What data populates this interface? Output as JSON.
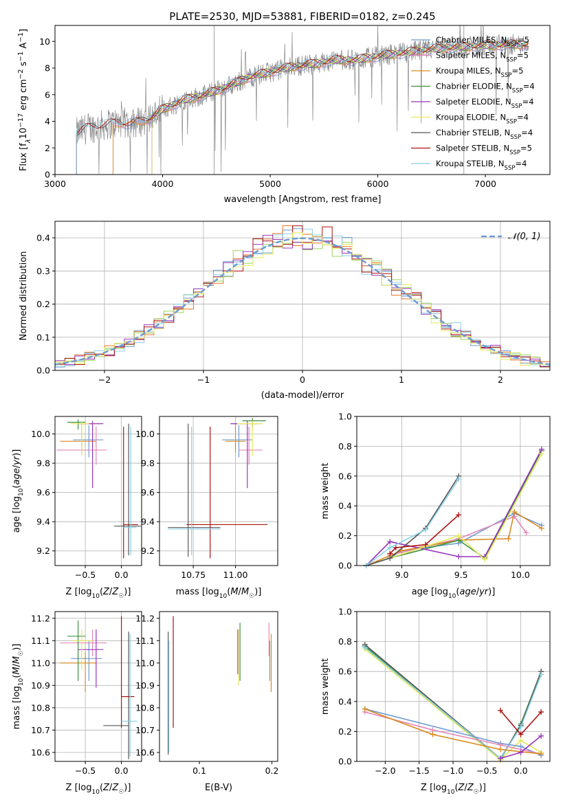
{
  "figure": {
    "title": "PLATE=2530, MJD=53881, FIBERID=0182, z=0.245"
  },
  "colors": {
    "Chabrier MILES": "#6f9bd1",
    "Salpeter MILES": "#e486b8",
    "Kroupa MILES": "#d98a1e",
    "Chabrier ELODIE": "#3f8f3f",
    "Salpeter ELODIE": "#9933bb",
    "Kroupa ELODIE": "#e4e85a",
    "Chabrier STELIB": "#555555",
    "Salpeter STELIB": "#aa1111",
    "Kroupa STELIB": "#88d0e6",
    "orange": "#e6742a",
    "green": "#98d45a",
    "data": "#888888",
    "gaussian": "#6f9bd1"
  },
  "chart_data": [
    {
      "id": "spectrum",
      "type": "line",
      "title": "PLATE=2530, MJD=53881, FIBERID=0182, z=0.245",
      "xlabel": "wavelength [Angstrom, rest frame]",
      "ylabel": "Flux [f_λ 10^-17 erg cm^-2 s^-1 A^-1]",
      "xlim": [
        3000,
        7600
      ],
      "ylim": [
        0,
        11.2
      ],
      "xticks": [
        3000,
        4000,
        5000,
        6000,
        7000
      ],
      "yticks": [
        0,
        2,
        4,
        6,
        8,
        10
      ],
      "grid": false,
      "legend_position": "top-right",
      "legend": [
        {
          "label": "Chabrier MILES, N_SSP=5",
          "lib": "Chabrier MILES"
        },
        {
          "label": "Salpeter MILES, N_SSP=5",
          "lib": "Salpeter MILES"
        },
        {
          "label": "Kroupa MILES, N_SSP=5",
          "lib": "Kroupa MILES"
        },
        {
          "label": "Chabrier ELODIE, N_SSP=4",
          "lib": "Chabrier ELODIE"
        },
        {
          "label": "Salpeter ELODIE, N_SSP=4",
          "lib": "Salpeter ELODIE"
        },
        {
          "label": "Kroupa ELODIE, N_SSP=4",
          "lib": "Kroupa ELODIE"
        },
        {
          "label": "Chabrier STELIB, N_SSP=4",
          "lib": "Chabrier STELIB"
        },
        {
          "label": "Salpeter STELIB, N_SSP=5",
          "lib": "Salpeter STELIB"
        },
        {
          "label": "Kroupa STELIB, N_SSP=4",
          "lib": "Kroupa STELIB"
        }
      ],
      "model_continuum": {
        "x": [
          3200,
          3300,
          3400,
          3500,
          3600,
          3700,
          3800,
          3900,
          4000,
          4200,
          4400,
          4600,
          4800,
          5000,
          5200,
          5400,
          5600,
          5800,
          6000,
          6300,
          6600,
          7000,
          7400
        ],
        "y": [
          3.1,
          3.5,
          3.6,
          3.8,
          3.9,
          3.8,
          4.0,
          4.3,
          4.9,
          5.6,
          6.0,
          6.6,
          7.3,
          7.7,
          8.1,
          8.3,
          8.6,
          8.6,
          8.9,
          9.2,
          9.5,
          9.7,
          9.8
        ]
      },
      "model_start_wavelength": {
        "Chabrier MILES": 3540,
        "Salpeter MILES": 3540,
        "Kroupa MILES": 3540,
        "Chabrier ELODIE": 3900,
        "Salpeter ELODIE": 3900,
        "Kroupa ELODIE": 3900,
        "Chabrier STELIB": 3200,
        "Salpeter STELIB": 3200,
        "Kroupa STELIB": 3200
      },
      "data_wavelength_range": [
        3200,
        7400
      ]
    },
    {
      "id": "residuals",
      "type": "histogram",
      "xlabel": "(data-model)/error",
      "ylabel": "Normed distribution",
      "xlim": [
        -2.5,
        2.5
      ],
      "ylim": [
        0,
        0.45
      ],
      "xticks": [
        -2,
        -1,
        0,
        1,
        2
      ],
      "yticks": [
        0.0,
        0.1,
        0.2,
        0.3,
        0.4
      ],
      "grid": true,
      "legend_position": "top-right",
      "legend": [
        {
          "label": "𝒩(0, 1)"
        }
      ],
      "bin_width": 0.1,
      "bin_start": -2.5
    },
    {
      "id": "age-vs-Z",
      "type": "errorbar",
      "xlabel": "Z [log10(Z/Z☉)]",
      "ylabel": "age [log10(age/yr)]",
      "xlim": [
        -0.92,
        0.28
      ],
      "ylim": [
        9.1,
        10.12
      ],
      "xticks": [
        -0.5,
        0.0
      ],
      "yticks": [
        9.2,
        9.4,
        9.6,
        9.8,
        10.0
      ],
      "grid": true,
      "points": [
        {
          "lib": "Chabrier MILES",
          "x": -0.45,
          "xerr": [
            0.22,
            0.2
          ],
          "y": 9.96,
          "yerr": [
            0.12,
            0.1
          ]
        },
        {
          "lib": "Salpeter MILES",
          "x": -0.35,
          "xerr": [
            0.55,
            0.15
          ],
          "y": 9.89,
          "yerr": [
            0.1,
            0.16
          ]
        },
        {
          "lib": "Kroupa MILES",
          "x": -0.55,
          "xerr": [
            0.3,
            0.2
          ],
          "y": 9.95,
          "yerr": [
            0.08,
            0.12
          ]
        },
        {
          "lib": "Chabrier ELODIE",
          "x": -0.6,
          "xerr": [
            0.15,
            0.1
          ],
          "y": 10.08,
          "yerr": [
            0.05,
            0.02
          ]
        },
        {
          "lib": "Salpeter ELODIE",
          "x": -0.4,
          "xerr": [
            0.2,
            0.15
          ],
          "y": 10.07,
          "yerr": [
            0.44,
            0.02
          ]
        },
        {
          "lib": "Kroupa ELODIE",
          "x": -0.55,
          "xerr": [
            0.15,
            0.1
          ],
          "y": 10.07,
          "yerr": [
            0.22,
            0.02
          ]
        },
        {
          "lib": "Chabrier STELIB",
          "x": 0.1,
          "xerr": [
            0.2,
            0.17
          ],
          "y": 9.37,
          "yerr": [
            0.2,
            0.7
          ]
        },
        {
          "lib": "Salpeter STELIB",
          "x": 0.03,
          "xerr": [
            0.0,
            0.2
          ],
          "y": 9.38,
          "yerr": [
            0.23,
            0.67
          ]
        },
        {
          "lib": "Kroupa STELIB",
          "x": 0.13,
          "xerr": [
            0.1,
            0.08
          ],
          "y": 9.36,
          "yerr": [
            0.19,
            0.69
          ]
        }
      ]
    },
    {
      "id": "age-vs-mass",
      "type": "errorbar",
      "xlabel": "mass [log10(M/M☉)]",
      "ylabel": "",
      "xlim": [
        10.55,
        11.25
      ],
      "ylim": [
        9.1,
        10.12
      ],
      "xticks": [
        10.75,
        11.0
      ],
      "yticks": [
        9.2,
        9.4,
        9.6,
        9.8,
        10.0
      ],
      "grid": true,
      "points": [
        {
          "lib": "Chabrier MILES",
          "x": 11.02,
          "xerr": [
            0.1,
            0.08
          ],
          "y": 9.96,
          "yerr": [
            0.12,
            0.1
          ]
        },
        {
          "lib": "Salpeter MILES",
          "x": 11.08,
          "xerr": [
            0.06,
            0.08
          ],
          "y": 9.89,
          "yerr": [
            0.1,
            0.16
          ]
        },
        {
          "lib": "Kroupa MILES",
          "x": 11.0,
          "xerr": [
            0.06,
            0.06
          ],
          "y": 9.95,
          "yerr": [
            0.08,
            0.12
          ]
        },
        {
          "lib": "Chabrier ELODIE",
          "x": 11.1,
          "xerr": [
            0.06,
            0.08
          ],
          "y": 10.09,
          "yerr": [
            0.05,
            0.02
          ]
        },
        {
          "lib": "Salpeter ELODIE",
          "x": 11.07,
          "xerr": [
            0.1,
            0.06
          ],
          "y": 10.07,
          "yerr": [
            0.44,
            0.02
          ]
        },
        {
          "lib": "Kroupa ELODIE",
          "x": 11.1,
          "xerr": [
            0.09,
            0.06
          ],
          "y": 10.07,
          "yerr": [
            0.22,
            0.02
          ]
        },
        {
          "lib": "Chabrier STELIB",
          "x": 10.72,
          "xerr": [
            0.12,
            0.19
          ],
          "y": 9.36,
          "yerr": [
            0.2,
            0.71
          ]
        },
        {
          "lib": "Salpeter STELIB",
          "x": 10.85,
          "xerr": [
            0.14,
            0.34
          ],
          "y": 9.38,
          "yerr": [
            0.23,
            0.67
          ]
        },
        {
          "lib": "Kroupa STELIB",
          "x": 10.74,
          "xerr": [
            0.14,
            0.17
          ],
          "y": 9.35,
          "yerr": [
            0.18,
            0.7
          ]
        }
      ]
    },
    {
      "id": "weight-vs-age",
      "type": "line",
      "xlabel": "age [log10(age/yr)]",
      "ylabel": "mass weight",
      "xlim": [
        8.62,
        10.25
      ],
      "ylim": [
        0,
        1.0
      ],
      "xticks": [
        9.0,
        9.5,
        10.0
      ],
      "yticks": [
        0.0,
        0.2,
        0.4,
        0.6,
        0.8,
        1.0
      ],
      "grid": true,
      "series": [
        {
          "lib": "Chabrier MILES",
          "x": [
            8.7,
            8.9,
            9.0,
            9.48,
            9.95,
            10.18
          ],
          "y": [
            0.0,
            0.05,
            0.1,
            0.15,
            0.35,
            0.27
          ]
        },
        {
          "lib": "Salpeter MILES",
          "x": [
            8.9,
            9.48,
            9.95,
            10.05
          ],
          "y": [
            0.07,
            0.18,
            0.33,
            0.22
          ]
        },
        {
          "lib": "Kroupa MILES",
          "x": [
            8.7,
            9.0,
            9.48,
            9.9,
            9.95,
            10.18
          ],
          "y": [
            0.0,
            0.1,
            0.17,
            0.18,
            0.36,
            0.25
          ]
        },
        {
          "lib": "Chabrier ELODIE",
          "x": [
            8.7,
            8.9,
            9.48,
            9.7,
            10.18
          ],
          "y": [
            0.0,
            0.05,
            0.17,
            0.05,
            0.77
          ]
        },
        {
          "lib": "Salpeter ELODIE",
          "x": [
            8.7,
            8.9,
            9.48,
            9.7,
            10.18
          ],
          "y": [
            0.0,
            0.16,
            0.06,
            0.06,
            0.78
          ]
        },
        {
          "lib": "Kroupa ELODIE",
          "x": [
            8.7,
            8.9,
            9.48,
            9.7,
            10.18
          ],
          "y": [
            0.0,
            0.05,
            0.2,
            0.04,
            0.75
          ]
        },
        {
          "lib": "Chabrier STELIB",
          "x": [
            8.7,
            8.9,
            9.2,
            9.48
          ],
          "y": [
            0.0,
            0.05,
            0.25,
            0.6
          ]
        },
        {
          "lib": "Salpeter STELIB",
          "x": [
            8.9,
            8.95,
            9.2,
            9.48
          ],
          "y": [
            0.08,
            0.12,
            0.14,
            0.34
          ]
        },
        {
          "lib": "Kroupa STELIB",
          "x": [
            8.7,
            8.9,
            9.2,
            9.48
          ],
          "y": [
            0.0,
            0.12,
            0.24,
            0.58
          ]
        }
      ]
    },
    {
      "id": "mass-vs-Z",
      "type": "errorbar",
      "xlabel": "Z [log10(Z/Z☉)]",
      "ylabel": "mass [log10(M/M☉)]",
      "xlim": [
        -0.92,
        0.28
      ],
      "ylim": [
        10.56,
        11.23
      ],
      "xticks": [
        -0.5,
        0.0
      ],
      "yticks": [
        10.6,
        10.7,
        10.8,
        10.9,
        11.0,
        11.1,
        11.2
      ],
      "grid": true,
      "points": [
        {
          "lib": "Chabrier MILES",
          "x": -0.45,
          "xerr": [
            0.25,
            0.18
          ],
          "y": 11.02,
          "yerr": [
            0.1,
            0.08
          ]
        },
        {
          "lib": "Salpeter MILES",
          "x": -0.4,
          "xerr": [
            0.45,
            0.2
          ],
          "y": 11.09,
          "yerr": [
            0.06,
            0.06
          ]
        },
        {
          "lib": "Kroupa MILES",
          "x": -0.5,
          "xerr": [
            0.35,
            0.15
          ],
          "y": 11.0,
          "yerr": [
            0.13,
            0.05
          ]
        },
        {
          "lib": "Chabrier ELODIE",
          "x": -0.6,
          "xerr": [
            0.15,
            0.1
          ],
          "y": 11.12,
          "yerr": [
            0.2,
            0.07
          ]
        },
        {
          "lib": "Salpeter ELODIE",
          "x": -0.35,
          "xerr": [
            0.25,
            0.1
          ],
          "y": 11.06,
          "yerr": [
            0.17,
            0.09
          ]
        },
        {
          "lib": "Kroupa ELODIE",
          "x": -0.55,
          "xerr": [
            0.15,
            0.15
          ],
          "y": 11.1,
          "yerr": [
            0.13,
            0.05
          ]
        },
        {
          "lib": "Chabrier STELIB",
          "x": 0.1,
          "xerr": [
            0.35,
            0.0
          ],
          "y": 10.72,
          "yerr": [
            0.15,
            0.42
          ]
        },
        {
          "lib": "Salpeter STELIB",
          "x": 0.0,
          "xerr": [
            0.0,
            0.18
          ],
          "y": 10.85,
          "yerr": [
            0.14,
            0.36
          ]
        },
        {
          "lib": "Kroupa STELIB",
          "x": 0.12,
          "xerr": [
            0.12,
            0.1
          ],
          "y": 10.74,
          "yerr": [
            0.16,
            0.39
          ]
        }
      ]
    },
    {
      "id": "mass-vs-EBV",
      "type": "errorbar",
      "xlabel": "E(B-V)",
      "ylabel": "",
      "xlim": [
        0.045,
        0.208
      ],
      "ylim": [
        10.56,
        11.23
      ],
      "xticks": [
        0.1,
        0.2
      ],
      "yticks": [
        10.6,
        10.7,
        10.8,
        10.9,
        11.0,
        11.1,
        11.2
      ],
      "grid": false,
      "points": [
        {
          "lib": "Chabrier MILES",
          "x": 0.197,
          "y": 11.02,
          "yerr": [
            0.1,
            0.08
          ]
        },
        {
          "lib": "Salpeter MILES",
          "x": 0.196,
          "y": 11.09,
          "yerr": [
            0.06,
            0.09
          ]
        },
        {
          "lib": "Kroupa MILES",
          "x": 0.199,
          "y": 11.0,
          "yerr": [
            0.13,
            0.13
          ]
        },
        {
          "lib": "Chabrier ELODIE",
          "x": 0.156,
          "y": 11.03,
          "yerr": [
            0.11,
            0.15
          ]
        },
        {
          "lib": "Salpeter ELODIE",
          "x": 0.153,
          "y": 11.05,
          "yerr": [
            0.1,
            0.1
          ]
        },
        {
          "lib": "Kroupa ELODIE",
          "x": 0.154,
          "y": 11.02,
          "yerr": [
            0.12,
            0.13
          ]
        },
        {
          "lib": "Chabrier STELIB",
          "x": 0.057,
          "y": 10.85,
          "yerr": [
            0.26,
            0.29
          ]
        },
        {
          "lib": "Salpeter STELIB",
          "x": 0.064,
          "y": 10.95,
          "yerr": [
            0.24,
            0.26
          ]
        },
        {
          "lib": "Kroupa STELIB",
          "x": 0.058,
          "y": 10.8,
          "yerr": [
            0.2,
            0.3
          ]
        }
      ]
    },
    {
      "id": "weight-vs-Z",
      "type": "line",
      "xlabel": "Z [log10(Z/Z☉)]",
      "ylabel": "mass weight",
      "xlim": [
        -2.42,
        0.43
      ],
      "ylim": [
        0,
        1.0
      ],
      "xticks": [
        -2.0,
        -1.5,
        -1.0,
        -0.5,
        0.0
      ],
      "yticks": [
        0.0,
        0.2,
        0.4,
        0.6,
        0.8,
        1.0
      ],
      "grid": true,
      "series": [
        {
          "lib": "Chabrier ELODIE",
          "x": [
            -2.3,
            -0.3,
            0.0,
            0.3
          ],
          "y": [
            0.77,
            0.01,
            0.25,
            0.6
          ]
        },
        {
          "lib": "Chabrier STELIB",
          "x": [
            -2.3,
            -0.3,
            0.0,
            0.3
          ],
          "y": [
            0.78,
            0.02,
            0.24,
            0.6
          ]
        },
        {
          "lib": "Kroupa ELODIE",
          "x": [
            -2.3,
            -0.3,
            0.0,
            0.3
          ],
          "y": [
            0.75,
            0.01,
            0.14,
            0.06
          ]
        },
        {
          "lib": "Kroupa STELIB",
          "x": [
            -2.3,
            -0.3,
            0.0,
            0.3
          ],
          "y": [
            0.76,
            0.02,
            0.23,
            0.58
          ]
        },
        {
          "lib": "Chabrier MILES",
          "x": [
            -2.3,
            -0.3,
            0.0,
            0.3
          ],
          "y": [
            0.35,
            0.12,
            0.1,
            0.04
          ]
        },
        {
          "lib": "Salpeter MILES",
          "x": [
            -2.3,
            -1.3,
            -0.3,
            0.3
          ],
          "y": [
            0.33,
            0.21,
            0.11,
            0.05
          ]
        },
        {
          "lib": "Kroupa MILES",
          "x": [
            -2.3,
            -1.3,
            -0.3,
            0.3
          ],
          "y": [
            0.35,
            0.18,
            0.08,
            0.05
          ]
        },
        {
          "lib": "Salpeter ELODIE",
          "x": [
            -0.3,
            0.0,
            0.3
          ],
          "y": [
            0.02,
            0.06,
            0.17
          ]
        },
        {
          "lib": "Salpeter STELIB",
          "x": [
            -0.3,
            0.0,
            0.3
          ],
          "y": [
            0.34,
            0.18,
            0.33
          ]
        }
      ]
    }
  ]
}
